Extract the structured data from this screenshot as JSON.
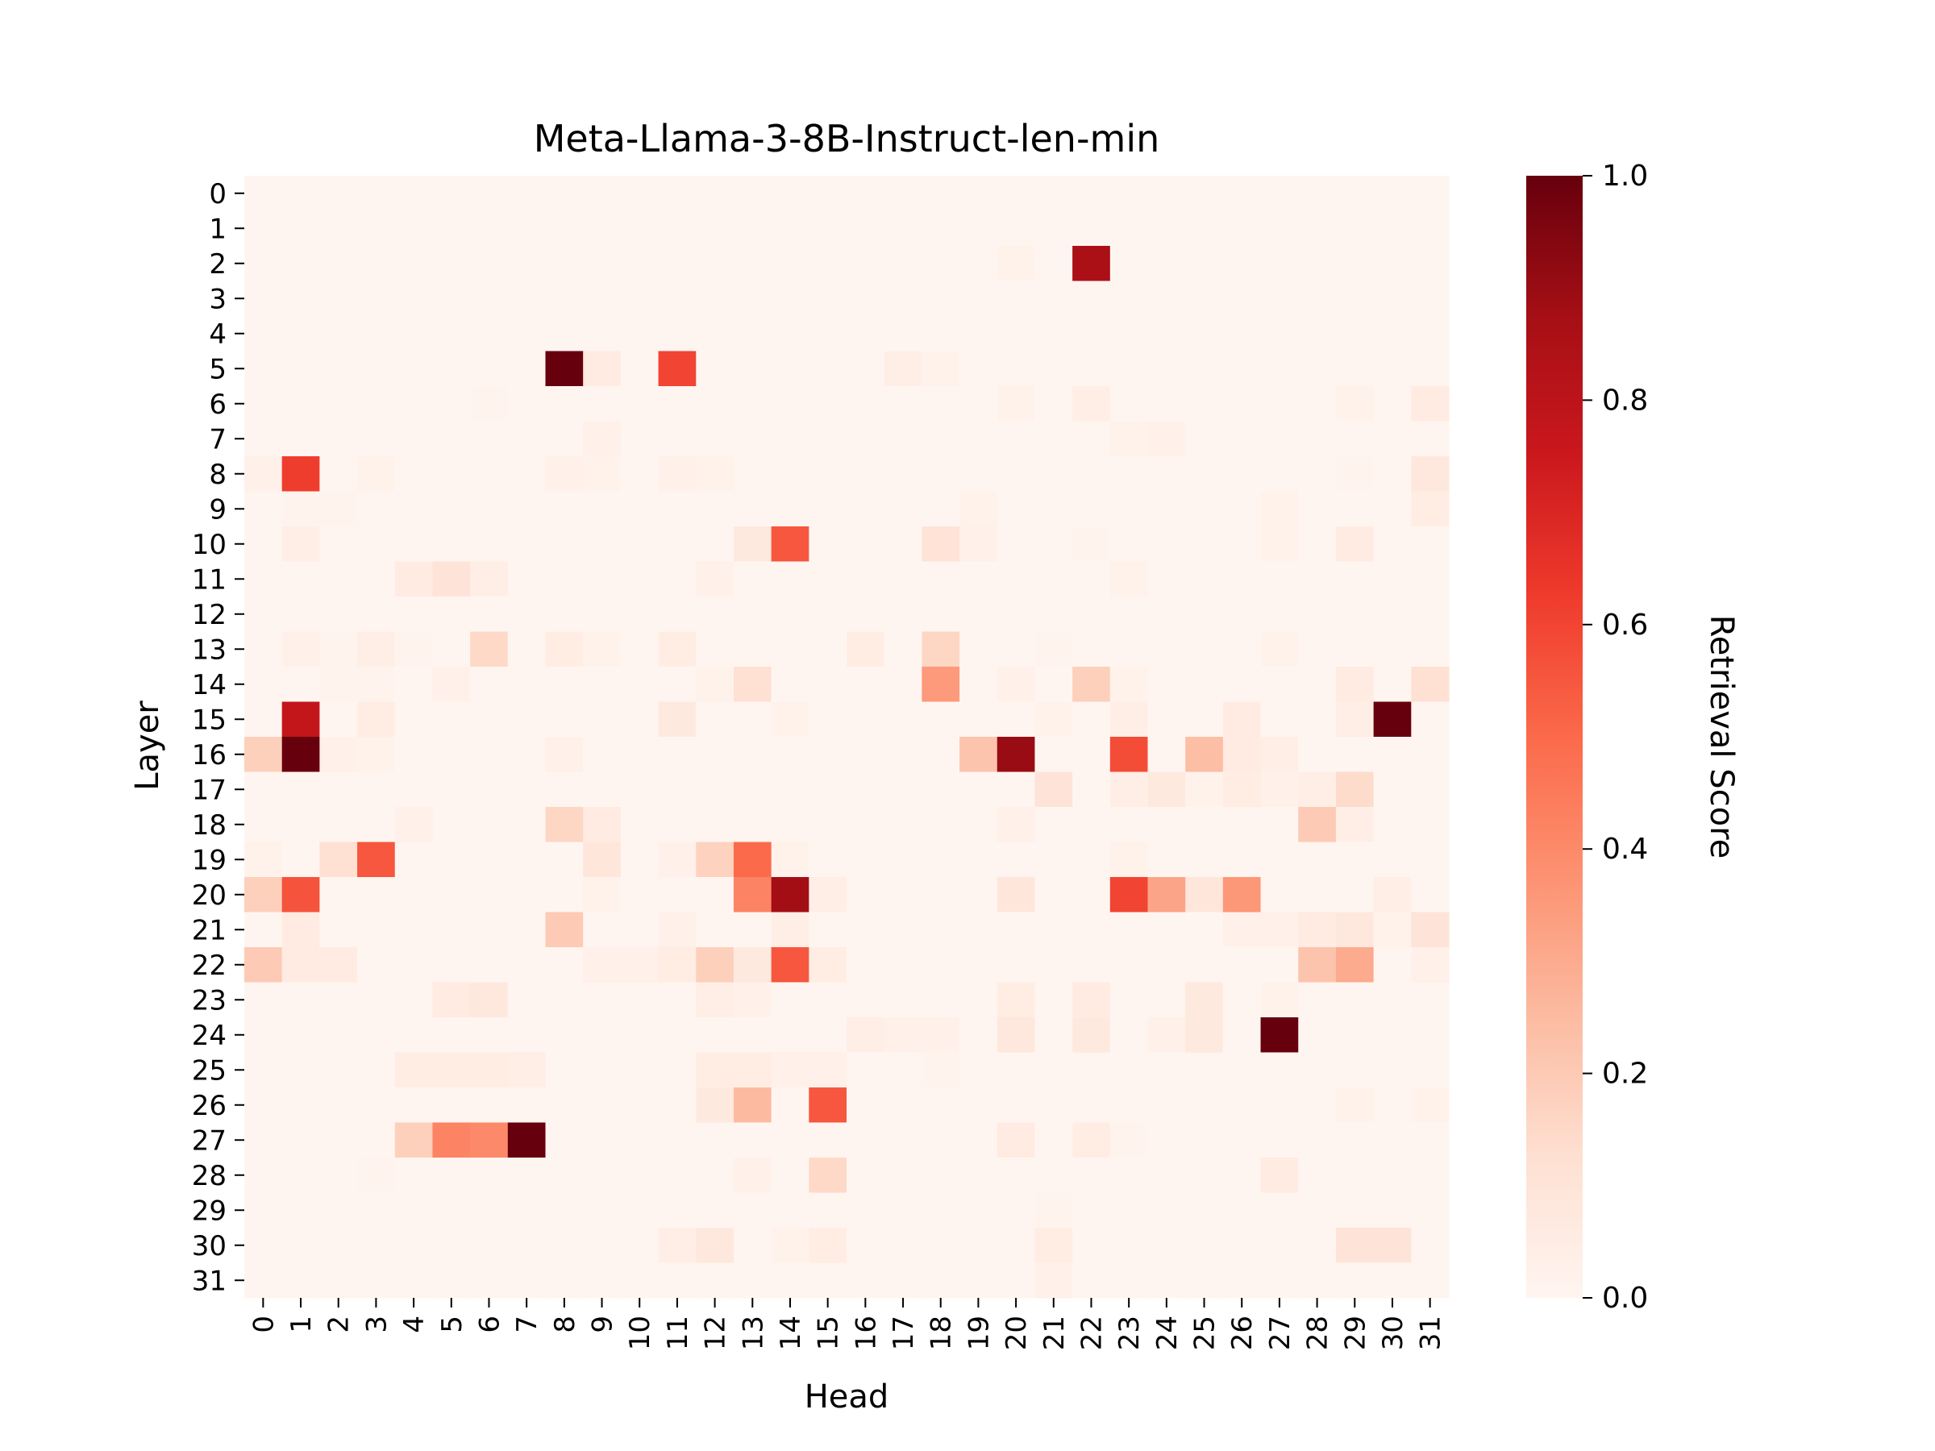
{
  "chart_data": {
    "type": "heatmap",
    "title": "Meta-Llama-3-8B-Instruct-len-min",
    "xlabel": "Head",
    "ylabel": "Layer",
    "colorbar": {
      "label": "Retrieval Score",
      "range": [
        0.0,
        1.0
      ],
      "ticks": [
        "0.0",
        "0.2",
        "0.4",
        "0.6",
        "0.8",
        "1.0"
      ],
      "colormap": "Reds",
      "colors": [
        "#fff5f0",
        "#fee0d2",
        "#fcbba1",
        "#fc9272",
        "#fb6a4a",
        "#ef3b2c",
        "#cb181d",
        "#a50f15",
        "#67000d"
      ]
    },
    "x_ticks": [
      "0",
      "1",
      "2",
      "3",
      "4",
      "5",
      "6",
      "7",
      "8",
      "9",
      "10",
      "11",
      "12",
      "13",
      "14",
      "15",
      "16",
      "17",
      "18",
      "19",
      "20",
      "21",
      "22",
      "23",
      "24",
      "25",
      "26",
      "27",
      "28",
      "29",
      "30",
      "31"
    ],
    "y_ticks": [
      "0",
      "1",
      "2",
      "3",
      "4",
      "5",
      "6",
      "7",
      "8",
      "9",
      "10",
      "11",
      "12",
      "13",
      "14",
      "15",
      "16",
      "17",
      "18",
      "19",
      "20",
      "21",
      "22",
      "23",
      "24",
      "25",
      "26",
      "27",
      "28",
      "29",
      "30",
      "31"
    ],
    "values": [
      [
        0,
        0,
        0,
        0,
        0,
        0,
        0,
        0,
        0,
        0,
        0,
        0,
        0,
        0,
        0,
        0,
        0,
        0,
        0,
        0,
        0,
        0,
        0,
        0,
        0,
        0,
        0,
        0,
        0,
        0,
        0,
        0
      ],
      [
        0,
        0,
        0,
        0,
        0,
        0,
        0,
        0,
        0,
        0,
        0,
        0,
        0,
        0,
        0,
        0,
        0,
        0,
        0,
        0,
        0,
        0,
        0,
        0,
        0,
        0,
        0,
        0,
        0,
        0,
        0,
        0
      ],
      [
        0,
        0,
        0,
        0,
        0,
        0,
        0,
        0,
        0,
        0,
        0,
        0,
        0,
        0,
        0,
        0,
        0,
        0,
        0,
        0,
        0.02,
        0,
        0.86,
        0,
        0,
        0,
        0,
        0,
        0,
        0,
        0,
        0
      ],
      [
        0,
        0,
        0,
        0,
        0,
        0,
        0,
        0,
        0,
        0,
        0,
        0,
        0,
        0,
        0,
        0,
        0,
        0,
        0,
        0,
        0,
        0,
        0,
        0,
        0,
        0,
        0,
        0,
        0,
        0,
        0,
        0
      ],
      [
        0,
        0,
        0,
        0,
        0,
        0,
        0,
        0,
        0,
        0,
        0,
        0,
        0,
        0,
        0,
        0,
        0,
        0,
        0,
        0,
        0,
        0,
        0,
        0,
        0,
        0,
        0,
        0,
        0,
        0,
        0,
        0
      ],
      [
        0,
        0,
        0,
        0,
        0,
        0,
        0,
        0,
        1.0,
        0.06,
        0,
        0.6,
        0,
        0,
        0,
        0,
        0,
        0.04,
        0.02,
        0,
        0,
        0,
        0,
        0,
        0,
        0,
        0,
        0,
        0,
        0,
        0,
        0
      ],
      [
        0,
        0,
        0,
        0,
        0,
        0,
        0.01,
        0,
        0,
        0,
        0,
        0,
        0,
        0,
        0,
        0,
        0,
        0,
        0,
        0,
        0.02,
        0,
        0.04,
        0,
        0,
        0,
        0,
        0,
        0,
        0.02,
        0,
        0.06
      ],
      [
        0,
        0,
        0,
        0,
        0,
        0,
        0,
        0,
        0,
        0.03,
        0,
        0,
        0,
        0,
        0,
        0,
        0,
        0,
        0,
        0,
        0,
        0,
        0,
        0.02,
        0.03,
        0,
        0,
        0,
        0,
        0,
        0,
        0
      ],
      [
        0.03,
        0.62,
        0,
        0.02,
        0,
        0,
        0,
        0,
        0.03,
        0.02,
        0,
        0.03,
        0.02,
        0,
        0,
        0,
        0,
        0,
        0,
        0,
        0,
        0,
        0,
        0,
        0,
        0,
        0,
        0,
        0,
        0.01,
        0,
        0.08
      ],
      [
        0,
        0.01,
        0.01,
        0,
        0,
        0,
        0,
        0,
        0,
        0,
        0,
        0,
        0,
        0,
        0,
        0,
        0,
        0,
        0,
        0.02,
        0,
        0,
        0,
        0,
        0,
        0,
        0,
        0.02,
        0,
        0,
        0,
        0.05
      ],
      [
        0,
        0.04,
        0,
        0,
        0,
        0,
        0,
        0,
        0,
        0,
        0,
        0,
        0,
        0.07,
        0.55,
        0,
        0,
        0,
        0.11,
        0.03,
        0,
        0,
        0.01,
        0,
        0,
        0,
        0,
        0.02,
        0,
        0.06,
        0,
        0
      ],
      [
        0,
        0,
        0,
        0,
        0.06,
        0.1,
        0.04,
        0,
        0,
        0,
        0,
        0,
        0.03,
        0,
        0,
        0,
        0,
        0,
        0,
        0,
        0,
        0,
        0,
        0.02,
        0,
        0,
        0,
        0,
        0,
        0,
        0,
        0
      ],
      [
        0,
        0,
        0,
        0,
        0,
        0,
        0,
        0,
        0,
        0,
        0,
        0,
        0,
        0,
        0,
        0,
        0,
        0,
        0,
        0,
        0,
        0,
        0,
        0,
        0,
        0,
        0,
        0,
        0,
        0,
        0,
        0
      ],
      [
        0,
        0.03,
        0.01,
        0.04,
        0.01,
        0,
        0.15,
        0,
        0.05,
        0.02,
        0,
        0.05,
        0,
        0,
        0,
        0,
        0.05,
        0,
        0.16,
        0,
        0,
        0.01,
        0,
        0,
        0,
        0,
        0,
        0.02,
        0,
        0,
        0,
        0
      ],
      [
        0,
        0,
        0.01,
        0.01,
        0,
        0.03,
        0,
        0,
        0,
        0,
        0,
        0,
        0.02,
        0.12,
        0,
        0,
        0,
        0,
        0.35,
        0,
        0.03,
        0,
        0.18,
        0.02,
        0,
        0,
        0,
        0,
        0,
        0.06,
        0,
        0.12
      ],
      [
        0,
        0.78,
        0,
        0.05,
        0,
        0,
        0,
        0,
        0,
        0,
        0,
        0.07,
        0,
        0,
        0.02,
        0,
        0,
        0,
        0,
        0,
        0,
        0.02,
        0,
        0.04,
        0,
        0,
        0.06,
        0,
        0,
        0.04,
        1.0,
        0
      ],
      [
        0.18,
        1.0,
        0.03,
        0.02,
        0,
        0,
        0,
        0,
        0.03,
        0,
        0,
        0,
        0,
        0,
        0,
        0,
        0,
        0,
        0,
        0.22,
        0.9,
        0,
        0,
        0.58,
        0,
        0.24,
        0.06,
        0.04,
        0,
        0,
        0,
        0
      ],
      [
        0,
        0,
        0,
        0,
        0,
        0,
        0,
        0,
        0,
        0,
        0,
        0,
        0,
        0,
        0,
        0,
        0,
        0,
        0,
        0,
        0,
        0.1,
        0,
        0.04,
        0.07,
        0.02,
        0.05,
        0.03,
        0.04,
        0.14,
        0,
        0
      ],
      [
        0,
        0,
        0,
        0,
        0.03,
        0,
        0,
        0,
        0.16,
        0.06,
        0,
        0,
        0,
        0,
        0,
        0,
        0,
        0,
        0,
        0,
        0.03,
        0,
        0,
        0,
        0,
        0,
        0,
        0,
        0.2,
        0.04,
        0,
        0
      ],
      [
        0.02,
        0,
        0.12,
        0.55,
        0,
        0,
        0,
        0,
        0,
        0.09,
        0,
        0.03,
        0.17,
        0.5,
        0.02,
        0,
        0,
        0,
        0,
        0,
        0,
        0,
        0,
        0.02,
        0,
        0,
        0,
        0,
        0,
        0,
        0,
        0
      ],
      [
        0.18,
        0.56,
        0,
        0,
        0,
        0,
        0,
        0,
        0,
        0.02,
        0,
        0,
        0,
        0.42,
        0.88,
        0.04,
        0,
        0,
        0,
        0,
        0.09,
        0,
        0,
        0.6,
        0.32,
        0.09,
        0.36,
        0,
        0,
        0,
        0.04,
        0
      ],
      [
        0,
        0.06,
        0,
        0,
        0,
        0,
        0,
        0,
        0.2,
        0,
        0,
        0.03,
        0,
        0,
        0.04,
        0,
        0,
        0,
        0,
        0,
        0,
        0,
        0,
        0,
        0,
        0,
        0.03,
        0.03,
        0.06,
        0.08,
        0.02,
        0.1
      ],
      [
        0.2,
        0.06,
        0.06,
        0,
        0,
        0,
        0,
        0,
        0,
        0.03,
        0.03,
        0.05,
        0.18,
        0.07,
        0.55,
        0.05,
        0,
        0,
        0,
        0,
        0,
        0,
        0,
        0,
        0,
        0,
        0,
        0,
        0.22,
        0.3,
        0,
        0.03
      ],
      [
        0,
        0,
        0,
        0,
        0,
        0.06,
        0.08,
        0,
        0,
        0,
        0,
        0,
        0.04,
        0.03,
        0,
        0,
        0,
        0,
        0,
        0,
        0.05,
        0,
        0.06,
        0,
        0,
        0.07,
        0,
        0.02,
        0,
        0,
        0,
        0
      ],
      [
        0,
        0,
        0,
        0,
        0,
        0,
        0,
        0,
        0,
        0,
        0,
        0,
        0,
        0,
        0,
        0,
        0.04,
        0.03,
        0.03,
        0,
        0.08,
        0,
        0.07,
        0,
        0.03,
        0.07,
        0,
        1.0,
        0,
        0,
        0,
        0
      ],
      [
        0,
        0,
        0,
        0,
        0.05,
        0.05,
        0.05,
        0.04,
        0,
        0,
        0,
        0,
        0.05,
        0.05,
        0.03,
        0.03,
        0,
        0,
        0.01,
        0,
        0,
        0,
        0,
        0,
        0,
        0,
        0,
        0,
        0,
        0,
        0,
        0
      ],
      [
        0,
        0,
        0,
        0,
        0,
        0,
        0,
        0,
        0,
        0,
        0,
        0,
        0.07,
        0.25,
        0,
        0.55,
        0,
        0,
        0,
        0,
        0,
        0,
        0,
        0,
        0,
        0,
        0,
        0,
        0,
        0.02,
        0,
        0.02
      ],
      [
        0,
        0,
        0,
        0,
        0.18,
        0.42,
        0.4,
        1.0,
        0,
        0,
        0,
        0,
        0,
        0,
        0,
        0,
        0,
        0,
        0,
        0,
        0.06,
        0,
        0.05,
        0.01,
        0,
        0,
        0,
        0,
        0,
        0,
        0,
        0
      ],
      [
        0,
        0,
        0,
        0.01,
        0,
        0,
        0,
        0,
        0,
        0,
        0,
        0,
        0,
        0.03,
        0,
        0.15,
        0,
        0,
        0,
        0,
        0,
        0,
        0,
        0,
        0,
        0,
        0,
        0.06,
        0,
        0,
        0,
        0
      ],
      [
        0,
        0,
        0,
        0,
        0,
        0,
        0,
        0,
        0,
        0,
        0,
        0,
        0,
        0,
        0,
        0,
        0,
        0,
        0,
        0,
        0,
        0.01,
        0,
        0,
        0,
        0,
        0,
        0,
        0,
        0,
        0,
        0
      ],
      [
        0,
        0,
        0,
        0,
        0,
        0,
        0,
        0,
        0,
        0,
        0,
        0.04,
        0.08,
        0,
        0.02,
        0.05,
        0,
        0,
        0,
        0,
        0,
        0.05,
        0,
        0,
        0,
        0,
        0,
        0,
        0,
        0.1,
        0.1,
        0
      ],
      [
        0,
        0,
        0,
        0,
        0,
        0,
        0,
        0,
        0,
        0,
        0,
        0,
        0,
        0,
        0,
        0,
        0,
        0,
        0,
        0,
        0,
        0.03,
        0,
        0,
        0,
        0,
        0,
        0,
        0,
        0,
        0,
        0
      ]
    ]
  }
}
